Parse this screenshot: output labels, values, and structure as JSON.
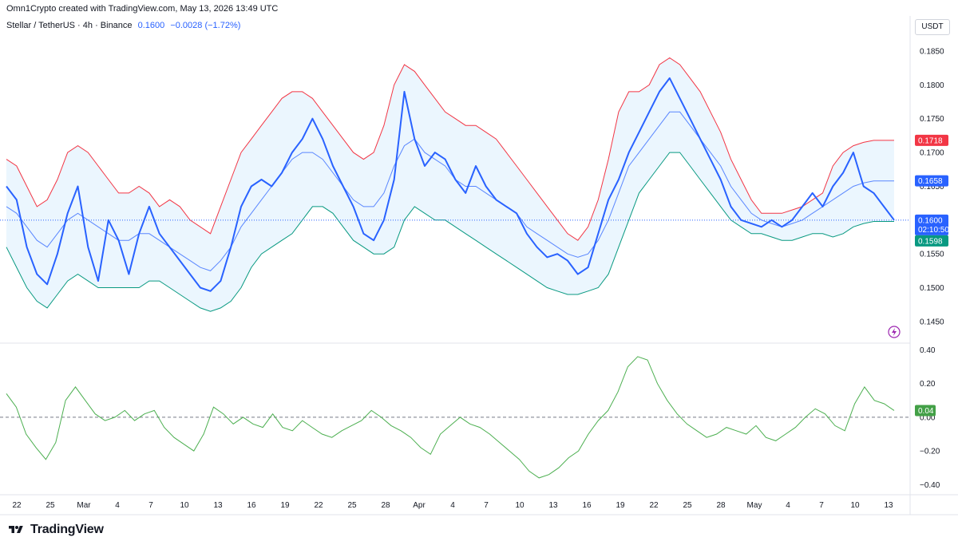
{
  "header": {
    "credit": "Omn1Crypto created with TradingView.com, May 13, 2026 13:49 UTC",
    "symbol": "Stellar / TetherUS · 4h · Binance",
    "price": "0.1600",
    "change": "−0.0028 (−1.72%)",
    "currency": "USDT"
  },
  "branding": {
    "name": "TradingView"
  },
  "colors": {
    "price_line": "#2962ff",
    "upper_band": "#f23645",
    "lower_band": "#089981",
    "basis": "#2962ff",
    "band_fill": "#e3f2fd",
    "oscillator": "#4caf50",
    "last_tag": "#2962ff",
    "upper_tag": "#f23645",
    "lower_tag": "#089981",
    "osc_tag": "#43a047"
  },
  "chart_data": [
    {
      "type": "line",
      "title": "",
      "x_tick_labels": [
        "22",
        "25",
        "Mar",
        "4",
        "7",
        "10",
        "13",
        "16",
        "19",
        "22",
        "25",
        "28",
        "Apr",
        "4",
        "7",
        "10",
        "13",
        "16",
        "19",
        "22",
        "25",
        "28",
        "May",
        "4",
        "7",
        "10",
        "13"
      ],
      "y_ticks": [
        "0.1850",
        "0.1800",
        "0.1750",
        "0.1700",
        "0.1650",
        "0.1600",
        "0.1550",
        "0.1500",
        "0.1450"
      ],
      "ylim": [
        0.1418,
        0.1876
      ],
      "price_labels": {
        "upper": "0.1718",
        "basis": "0.1658",
        "last": "0.1600",
        "countdown": "02:10:50",
        "lower": "0.1598"
      },
      "series": [
        {
          "name": "",
          "role": "price",
          "values": [
            0.165,
            0.163,
            0.156,
            0.152,
            0.1505,
            0.155,
            0.161,
            0.165,
            0.156,
            0.151,
            0.16,
            0.157,
            0.152,
            0.158,
            0.162,
            0.158,
            0.156,
            0.154,
            0.152,
            0.15,
            0.1495,
            0.151,
            0.156,
            0.162,
            0.165,
            0.166,
            0.165,
            0.167,
            0.17,
            0.172,
            0.175,
            0.172,
            0.168,
            0.165,
            0.162,
            0.158,
            0.157,
            0.16,
            0.166,
            0.179,
            0.172,
            0.168,
            0.17,
            0.169,
            0.166,
            0.164,
            0.168,
            0.165,
            0.163,
            0.162,
            0.161,
            0.158,
            0.156,
            0.1545,
            0.155,
            0.154,
            0.152,
            0.153,
            0.158,
            0.163,
            0.166,
            0.17,
            0.173,
            0.176,
            0.179,
            0.181,
            0.178,
            0.175,
            0.172,
            0.169,
            0.166,
            0.162,
            0.16,
            0.1595,
            0.159,
            0.16,
            0.159,
            0.16,
            0.162,
            0.164,
            0.162,
            0.165,
            0.167,
            0.17,
            0.165,
            0.164,
            0.162,
            0.16
          ]
        },
        {
          "name": "",
          "role": "upper_band",
          "values": [
            0.169,
            0.168,
            0.165,
            0.162,
            0.163,
            0.166,
            0.17,
            0.171,
            0.17,
            0.168,
            0.166,
            0.164,
            0.164,
            0.165,
            0.164,
            0.162,
            0.163,
            0.162,
            0.16,
            0.159,
            0.158,
            0.162,
            0.166,
            0.17,
            0.172,
            0.174,
            0.176,
            0.178,
            0.179,
            0.179,
            0.178,
            0.176,
            0.174,
            0.172,
            0.17,
            0.169,
            0.17,
            0.174,
            0.18,
            0.183,
            0.182,
            0.18,
            0.178,
            0.176,
            0.175,
            0.174,
            0.174,
            0.173,
            0.172,
            0.17,
            0.168,
            0.166,
            0.164,
            0.162,
            0.16,
            0.158,
            0.157,
            0.159,
            0.163,
            0.169,
            0.176,
            0.179,
            0.179,
            0.18,
            0.183,
            0.184,
            0.183,
            0.181,
            0.179,
            0.176,
            0.173,
            0.169,
            0.166,
            0.163,
            0.161,
            0.161,
            0.161,
            0.1615,
            0.162,
            0.163,
            0.164,
            0.168,
            0.17,
            0.171,
            0.1715,
            0.1718,
            0.1718,
            0.1718
          ]
        },
        {
          "name": "",
          "role": "basis",
          "values": [
            0.162,
            0.161,
            0.159,
            0.157,
            0.156,
            0.158,
            0.16,
            0.161,
            0.16,
            0.159,
            0.158,
            0.157,
            0.157,
            0.158,
            0.158,
            0.157,
            0.156,
            0.155,
            0.154,
            0.153,
            0.1525,
            0.154,
            0.156,
            0.159,
            0.161,
            0.163,
            0.165,
            0.167,
            0.169,
            0.17,
            0.17,
            0.169,
            0.167,
            0.165,
            0.163,
            0.162,
            0.162,
            0.164,
            0.168,
            0.171,
            0.172,
            0.17,
            0.169,
            0.168,
            0.166,
            0.165,
            0.165,
            0.164,
            0.163,
            0.162,
            0.161,
            0.159,
            0.158,
            0.157,
            0.156,
            0.155,
            0.1545,
            0.155,
            0.157,
            0.16,
            0.164,
            0.168,
            0.17,
            0.172,
            0.174,
            0.176,
            0.176,
            0.174,
            0.172,
            0.17,
            0.168,
            0.165,
            0.163,
            0.161,
            0.16,
            0.1595,
            0.159,
            0.1595,
            0.16,
            0.161,
            0.162,
            0.163,
            0.164,
            0.165,
            0.1655,
            0.1658,
            0.1658,
            0.1658
          ]
        },
        {
          "name": "",
          "role": "lower_band",
          "values": [
            0.156,
            0.153,
            0.15,
            0.148,
            0.147,
            0.149,
            0.151,
            0.152,
            0.151,
            0.15,
            0.15,
            0.15,
            0.15,
            0.15,
            0.151,
            0.151,
            0.15,
            0.149,
            0.148,
            0.147,
            0.1465,
            0.147,
            0.148,
            0.15,
            0.153,
            0.155,
            0.156,
            0.157,
            0.158,
            0.16,
            0.162,
            0.162,
            0.161,
            0.159,
            0.157,
            0.156,
            0.155,
            0.155,
            0.156,
            0.16,
            0.162,
            0.161,
            0.16,
            0.16,
            0.159,
            0.158,
            0.157,
            0.156,
            0.155,
            0.154,
            0.153,
            0.152,
            0.151,
            0.15,
            0.1495,
            0.149,
            0.149,
            0.1495,
            0.15,
            0.152,
            0.156,
            0.16,
            0.164,
            0.166,
            0.168,
            0.17,
            0.17,
            0.168,
            0.166,
            0.164,
            0.162,
            0.16,
            0.159,
            0.158,
            0.158,
            0.1575,
            0.157,
            0.157,
            0.1575,
            0.158,
            0.158,
            0.1575,
            0.158,
            0.159,
            0.1595,
            0.1598,
            0.1598,
            0.1598
          ]
        }
      ]
    },
    {
      "type": "line",
      "title": "",
      "y_ticks": [
        "0.40",
        "0.20",
        "0.00",
        "−0.20",
        "−0.40"
      ],
      "ylim": [
        -0.46,
        0.44
      ],
      "zero_line": 0,
      "last_label": "0.04",
      "series": [
        {
          "name": "",
          "role": "oscillator",
          "values": [
            0.14,
            0.06,
            -0.1,
            -0.18,
            -0.25,
            -0.15,
            0.1,
            0.18,
            0.1,
            0.02,
            -0.02,
            0.0,
            0.04,
            -0.02,
            0.02,
            0.04,
            -0.06,
            -0.12,
            -0.16,
            -0.2,
            -0.1,
            0.06,
            0.02,
            -0.04,
            0.0,
            -0.04,
            -0.06,
            0.02,
            -0.06,
            -0.08,
            -0.02,
            -0.06,
            -0.1,
            -0.12,
            -0.08,
            -0.05,
            -0.02,
            0.04,
            0.0,
            -0.05,
            -0.08,
            -0.12,
            -0.18,
            -0.22,
            -0.1,
            -0.05,
            0.0,
            -0.04,
            -0.06,
            -0.1,
            -0.15,
            -0.2,
            -0.25,
            -0.32,
            -0.36,
            -0.34,
            -0.3,
            -0.24,
            -0.2,
            -0.1,
            -0.02,
            0.04,
            0.15,
            0.3,
            0.36,
            0.34,
            0.2,
            0.1,
            0.02,
            -0.04,
            -0.08,
            -0.12,
            -0.1,
            -0.06,
            -0.08,
            -0.1,
            -0.05,
            -0.12,
            -0.14,
            -0.1,
            -0.06,
            0.0,
            0.05,
            0.02,
            -0.05,
            -0.08,
            0.08,
            0.18,
            0.1,
            0.08,
            0.04
          ]
        }
      ]
    }
  ]
}
